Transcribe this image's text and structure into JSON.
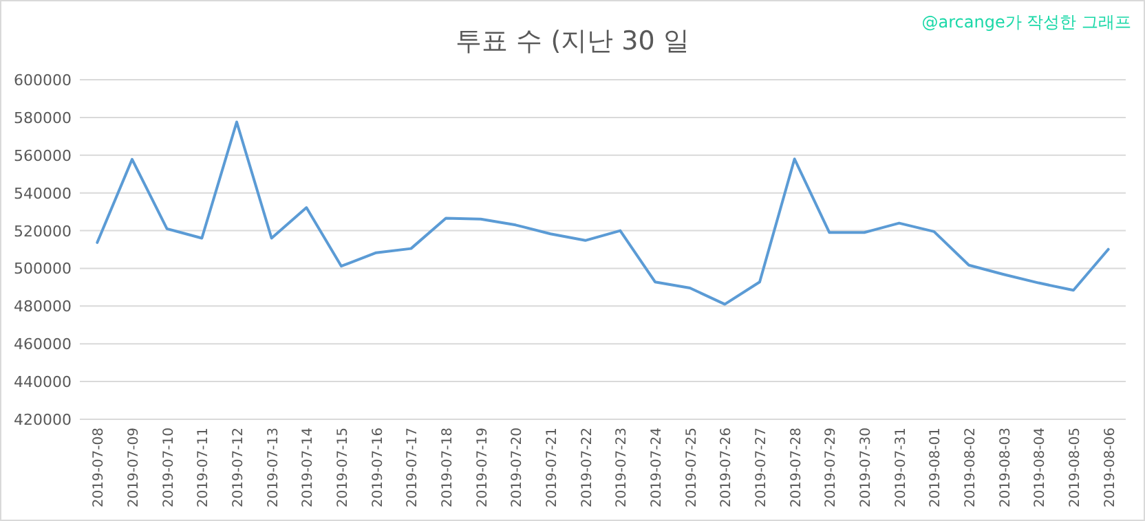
{
  "chart_data": {
    "type": "line",
    "title": "투표 수 (지난 30 일",
    "annotations": [
      "@arcange가 작성한 그래프"
    ],
    "categories": [
      "2019-07-08",
      "2019-07-09",
      "2019-07-10",
      "2019-07-11",
      "2019-07-12",
      "2019-07-13",
      "2019-07-14",
      "2019-07-15",
      "2019-07-16",
      "2019-07-17",
      "2019-07-18",
      "2019-07-19",
      "2019-07-20",
      "2019-07-21",
      "2019-07-22",
      "2019-07-23",
      "2019-07-24",
      "2019-07-25",
      "2019-07-26",
      "2019-07-27",
      "2019-07-28",
      "2019-07-29",
      "2019-07-30",
      "2019-07-31",
      "2019-08-01",
      "2019-08-02",
      "2019-08-03",
      "2019-08-04",
      "2019-08-05",
      "2019-08-06"
    ],
    "series": [
      {
        "color": "#5b9bd5",
        "values": [
          513700,
          557800,
          521000,
          516000,
          577600,
          516000,
          532200,
          501200,
          508300,
          510500,
          526600,
          526100,
          523000,
          518300,
          514800,
          520000,
          492800,
          489600,
          481000,
          492800,
          558000,
          519000,
          519000,
          524000,
          519500,
          501700,
          496800,
          492300,
          488400,
          510100
        ]
      }
    ],
    "ylim": [
      420000,
      600000
    ],
    "yticks": [
      420000,
      440000,
      460000,
      480000,
      500000,
      520000,
      540000,
      560000,
      580000,
      600000
    ],
    "grid": "y",
    "marker": "none",
    "line_style": "solid"
  }
}
